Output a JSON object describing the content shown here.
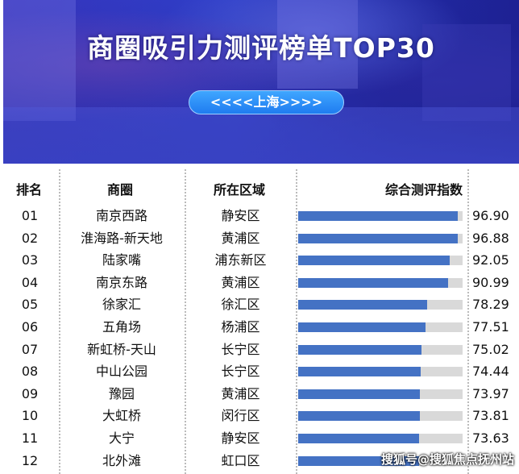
{
  "banner": {
    "title": "商圈吸引力测评榜单TOP30",
    "city": "<<<<上海>>>>"
  },
  "headers": {
    "rank": "排名",
    "name": "商圈",
    "district": "所在区域",
    "score": "综合测评指数"
  },
  "score_max": 100,
  "colors": {
    "bar": "#4472c4",
    "track": "#d9d9d9"
  },
  "rows": [
    {
      "rank": "01",
      "name": "南京西路",
      "district": "静安区",
      "score": "96.90"
    },
    {
      "rank": "02",
      "name": "淮海路-新天地",
      "district": "黄浦区",
      "score": "96.88"
    },
    {
      "rank": "03",
      "name": "陆家嘴",
      "district": "浦东新区",
      "score": "92.05"
    },
    {
      "rank": "04",
      "name": "南京东路",
      "district": "黄浦区",
      "score": "90.99"
    },
    {
      "rank": "05",
      "name": "徐家汇",
      "district": "徐汇区",
      "score": "78.29"
    },
    {
      "rank": "06",
      "name": "五角场",
      "district": "杨浦区",
      "score": "77.51"
    },
    {
      "rank": "07",
      "name": "新虹桥-天山",
      "district": "长宁区",
      "score": "75.02"
    },
    {
      "rank": "08",
      "name": "中山公园",
      "district": "长宁区",
      "score": "74.44"
    },
    {
      "rank": "09",
      "name": "豫园",
      "district": "黄浦区",
      "score": "73.97"
    },
    {
      "rank": "10",
      "name": "大虹桥",
      "district": "闵行区",
      "score": "73.81"
    },
    {
      "rank": "11",
      "name": "大宁",
      "district": "静安区",
      "score": "73.63"
    },
    {
      "rank": "12",
      "name": "北外滩",
      "district": "虹口区",
      "score": null
    }
  ],
  "watermark": "搜狐号@搜狐焦点抚州站"
}
